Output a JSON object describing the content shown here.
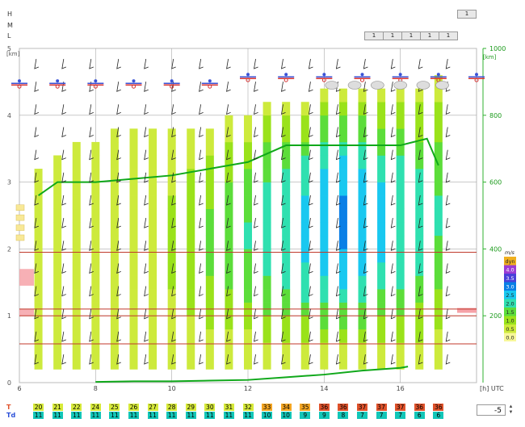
{
  "cloud_rows": {
    "labels": [
      "H",
      "M",
      "L"
    ],
    "high_values": [
      "1"
    ],
    "low_values": [
      "1",
      "1",
      "1",
      "1",
      "1"
    ]
  },
  "spin_control": {
    "value": "-5",
    "up_icon": "chevron-up-icon",
    "down_icon": "chevron-down-icon"
  },
  "hour_time_labels": [
    "6",
    "8",
    "10",
    "12",
    "14",
    "16"
  ],
  "time_axis_unit": "[h] UTC",
  "bottom_rows": {
    "t_label": "T",
    "td_label": "Td",
    "t_values": [
      "20",
      "21",
      "22",
      "24",
      "25",
      "26",
      "27",
      "28",
      "29",
      "30",
      "31",
      "32",
      "33",
      "34",
      "35",
      "36",
      "36",
      "37",
      "37",
      "37",
      "36",
      "36"
    ],
    "td_values": [
      "11",
      "11",
      "11",
      "11",
      "11",
      "11",
      "11",
      "11",
      "11",
      "11",
      "11",
      "11",
      "10",
      "10",
      "9",
      "9",
      "8",
      "7",
      "7",
      "7",
      "6",
      "6"
    ]
  },
  "colors": {
    "ws_palette": [
      "#f7f79a",
      "#cdea3c",
      "#9ae21a",
      "#5cdd3a",
      "#2fe0b0",
      "#19c8f0",
      "#0a7fe6",
      "#4a3fd8",
      "#9b3bd4",
      "#c41fd0"
    ],
    "t_warm": "#f5a623",
    "t_hot": "#e0522b",
    "td": "#12c6b8",
    "pbl_line": "#0fa81a",
    "inversion": "#c0392b"
  },
  "chart_data": {
    "type": "heatmap",
    "time_hours": [
      6.5,
      7,
      7.5,
      8,
      8.5,
      9,
      9.5,
      10,
      10.5,
      11,
      11.5,
      12,
      12.5,
      13,
      13.5,
      14,
      14.5,
      15,
      15.5,
      16,
      16.5,
      17
    ],
    "xlim": [
      6,
      18
    ],
    "y_left": {
      "unit": "[km]",
      "ticks": [
        0,
        1,
        2,
        3,
        4,
        5
      ],
      "ylim": [
        0,
        5
      ]
    },
    "y_right": {
      "unit": "[km]",
      "ticks": [
        200,
        400,
        600,
        800,
        1000
      ]
    },
    "wind_speed_legend": {
      "unit": "m/s",
      "levels": [
        "0.0",
        "0.5",
        "1.0",
        "1.5",
        "2.0",
        "2.5",
        "3.0",
        "3.5",
        "4.0",
        "dyn"
      ]
    },
    "column_tops_km": [
      3.2,
      3.5,
      3.6,
      3.6,
      3.7,
      3.7,
      3.75,
      3.8,
      3.85,
      3.9,
      4.0,
      4.1,
      4.2,
      4.2,
      4.3,
      4.4,
      4.45,
      4.5,
      4.5,
      4.5,
      4.5,
      4.6
    ],
    "pbl_height_line": {
      "x": [
        6.5,
        7,
        8,
        9,
        10,
        11,
        12,
        13,
        14,
        15,
        16,
        16.7,
        17
      ],
      "y_km": [
        2.8,
        3.0,
        3.0,
        3.05,
        3.1,
        3.2,
        3.3,
        3.55,
        3.55,
        3.55,
        3.55,
        3.65,
        3.25
      ]
    },
    "surface_line": {
      "x": [
        8,
        9,
        10,
        11,
        12,
        13,
        14,
        15,
        16,
        16.2
      ],
      "y_km": [
        0.01,
        0.02,
        0.02,
        0.03,
        0.04,
        0.08,
        0.12,
        0.18,
        0.22,
        0.24
      ]
    },
    "inversion_lines_km": [
      0.58,
      1.0,
      1.1,
      1.95
    ]
  }
}
